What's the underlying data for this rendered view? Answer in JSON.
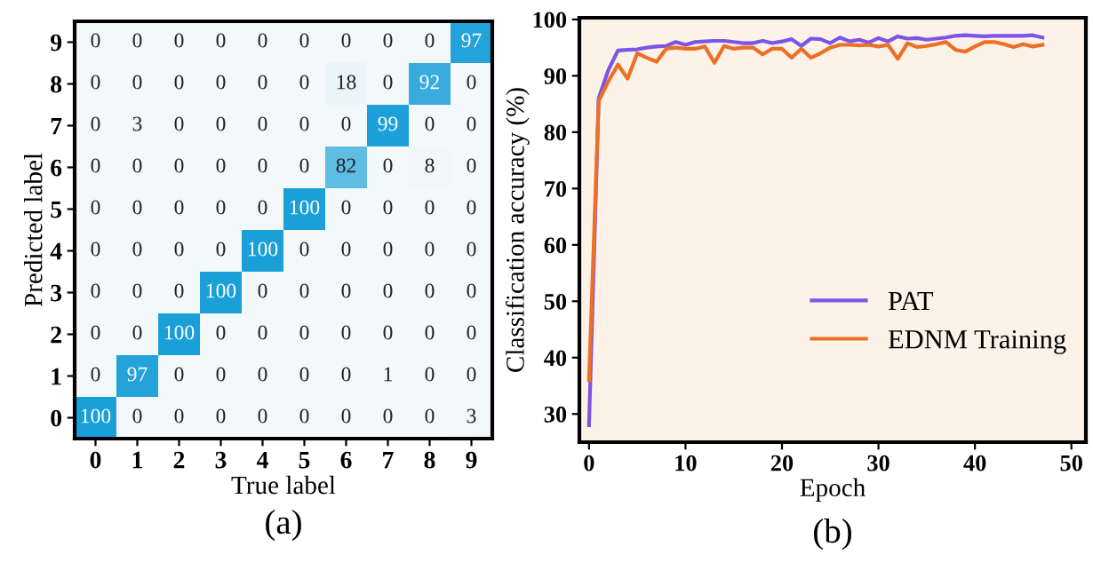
{
  "chart_data": [
    {
      "type": "heatmap",
      "xlabel": "True label",
      "ylabel": "Predicted label",
      "annotations": [
        "(a)"
      ],
      "data_labels": true,
      "categories": [
        "0",
        "1",
        "2",
        "3",
        "4",
        "5",
        "6",
        "7",
        "8",
        "9"
      ],
      "y_categories": [
        "9",
        "8",
        "7",
        "6",
        "5",
        "4",
        "3",
        "2",
        "1",
        "0"
      ],
      "cells": [
        [
          0,
          0,
          0,
          0,
          0,
          0,
          0,
          0,
          0,
          97
        ],
        [
          0,
          0,
          0,
          0,
          0,
          0,
          18,
          0,
          92,
          0
        ],
        [
          0,
          3,
          0,
          0,
          0,
          0,
          0,
          99,
          0,
          0
        ],
        [
          0,
          0,
          0,
          0,
          0,
          0,
          82,
          0,
          8,
          0
        ],
        [
          0,
          0,
          0,
          0,
          0,
          100,
          0,
          0,
          0,
          0
        ],
        [
          0,
          0,
          0,
          0,
          100,
          0,
          0,
          0,
          0,
          0
        ],
        [
          0,
          0,
          0,
          100,
          0,
          0,
          0,
          0,
          0,
          0
        ],
        [
          0,
          0,
          100,
          0,
          0,
          0,
          0,
          0,
          0,
          0
        ],
        [
          0,
          97,
          0,
          0,
          0,
          0,
          0,
          1,
          0,
          0
        ],
        [
          100,
          0,
          0,
          0,
          0,
          0,
          0,
          0,
          0,
          3
        ]
      ]
    },
    {
      "type": "line",
      "xlabel": "Epoch",
      "ylabel": "Classification accuracy (%)",
      "annotations": [
        "(b)"
      ],
      "xlim": [
        -1,
        51.5
      ],
      "ylim": [
        25,
        100.3
      ],
      "xticks": [
        0,
        10,
        20,
        30,
        40,
        50
      ],
      "yticks": [
        30,
        40,
        50,
        60,
        70,
        80,
        90,
        100
      ],
      "grid": false,
      "legend": "bottom right",
      "marker": "none",
      "line_style": "solid",
      "x": [
        0,
        1,
        2,
        3,
        4,
        5,
        6,
        7,
        8,
        9,
        10,
        11,
        12,
        13,
        14,
        15,
        16,
        17,
        18,
        19,
        20,
        21,
        22,
        23,
        24,
        25,
        26,
        27,
        28,
        29,
        30,
        31,
        32,
        33,
        34,
        35,
        36,
        37,
        38,
        39,
        40,
        41,
        42,
        43,
        44,
        45,
        46,
        47
      ],
      "series": [
        {
          "name": "PAT",
          "color": "#7b55e6",
          "values": [
            28,
            86,
            91,
            94.5,
            94.6,
            94.7,
            95,
            95.2,
            95.3,
            96,
            95.5,
            96,
            96.1,
            96.2,
            96.2,
            96,
            95.8,
            95.8,
            96.2,
            95.8,
            96.1,
            96.5,
            95.3,
            96.6,
            96.5,
            95.8,
            96.8,
            96.1,
            96.4,
            95.9,
            96.7,
            96.1,
            97,
            96.6,
            96.7,
            96.4,
            96.6,
            96.8,
            97.1,
            97.2,
            97.1,
            97,
            97.1,
            97.1,
            97.1,
            97.1,
            97.2,
            96.8
          ]
        },
        {
          "name": "EDNM Training",
          "color": "#ec6f25",
          "values": [
            36,
            85.5,
            89,
            92,
            89.5,
            94,
            93.2,
            92.5,
            94.8,
            95,
            94.8,
            94.8,
            95.2,
            92.3,
            95.3,
            94.8,
            95,
            95,
            93.8,
            94.8,
            94.8,
            93.2,
            94.8,
            93.2,
            94,
            95,
            95.5,
            95.5,
            95.4,
            95.5,
            95.2,
            95.5,
            93,
            95.8,
            95.1,
            95.3,
            95.6,
            96,
            94.6,
            94.3,
            95.2,
            96,
            96,
            95.6,
            95.1,
            95.6,
            95.2,
            95.5
          ]
        }
      ]
    }
  ]
}
